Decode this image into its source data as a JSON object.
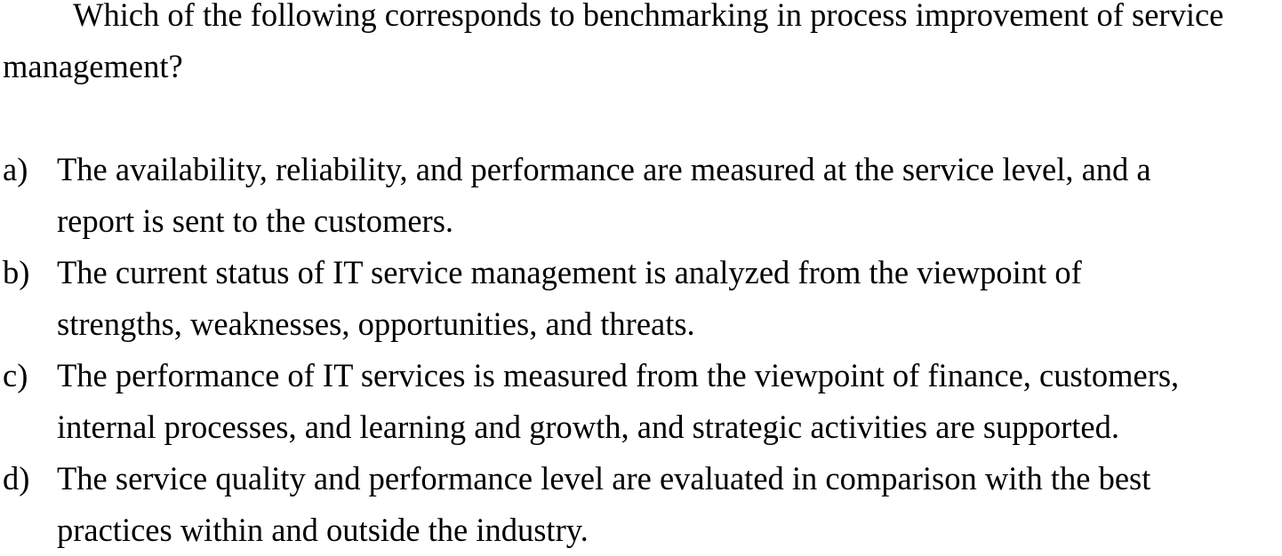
{
  "question": {
    "text": "Which of the following corresponds to benchmarking in process improvement of service management?"
  },
  "options": [
    {
      "letter": "a)",
      "line1": "The availability, reliability, and performance are measured at the service level, and a",
      "line2": "report is sent to the customers."
    },
    {
      "letter": "b)",
      "line1": "The current status of IT service management is analyzed from the viewpoint of",
      "line2": "strengths, weaknesses, opportunities, and threats."
    },
    {
      "letter": "c)",
      "line1": "The performance of IT services is measured from the viewpoint of finance, customers,",
      "line2": "internal processes, and learning and growth, and strategic activities are supported."
    },
    {
      "letter": "d)",
      "line1": "The service quality and performance level are evaluated in comparison with the best",
      "line2": "practices within and outside the industry."
    }
  ]
}
